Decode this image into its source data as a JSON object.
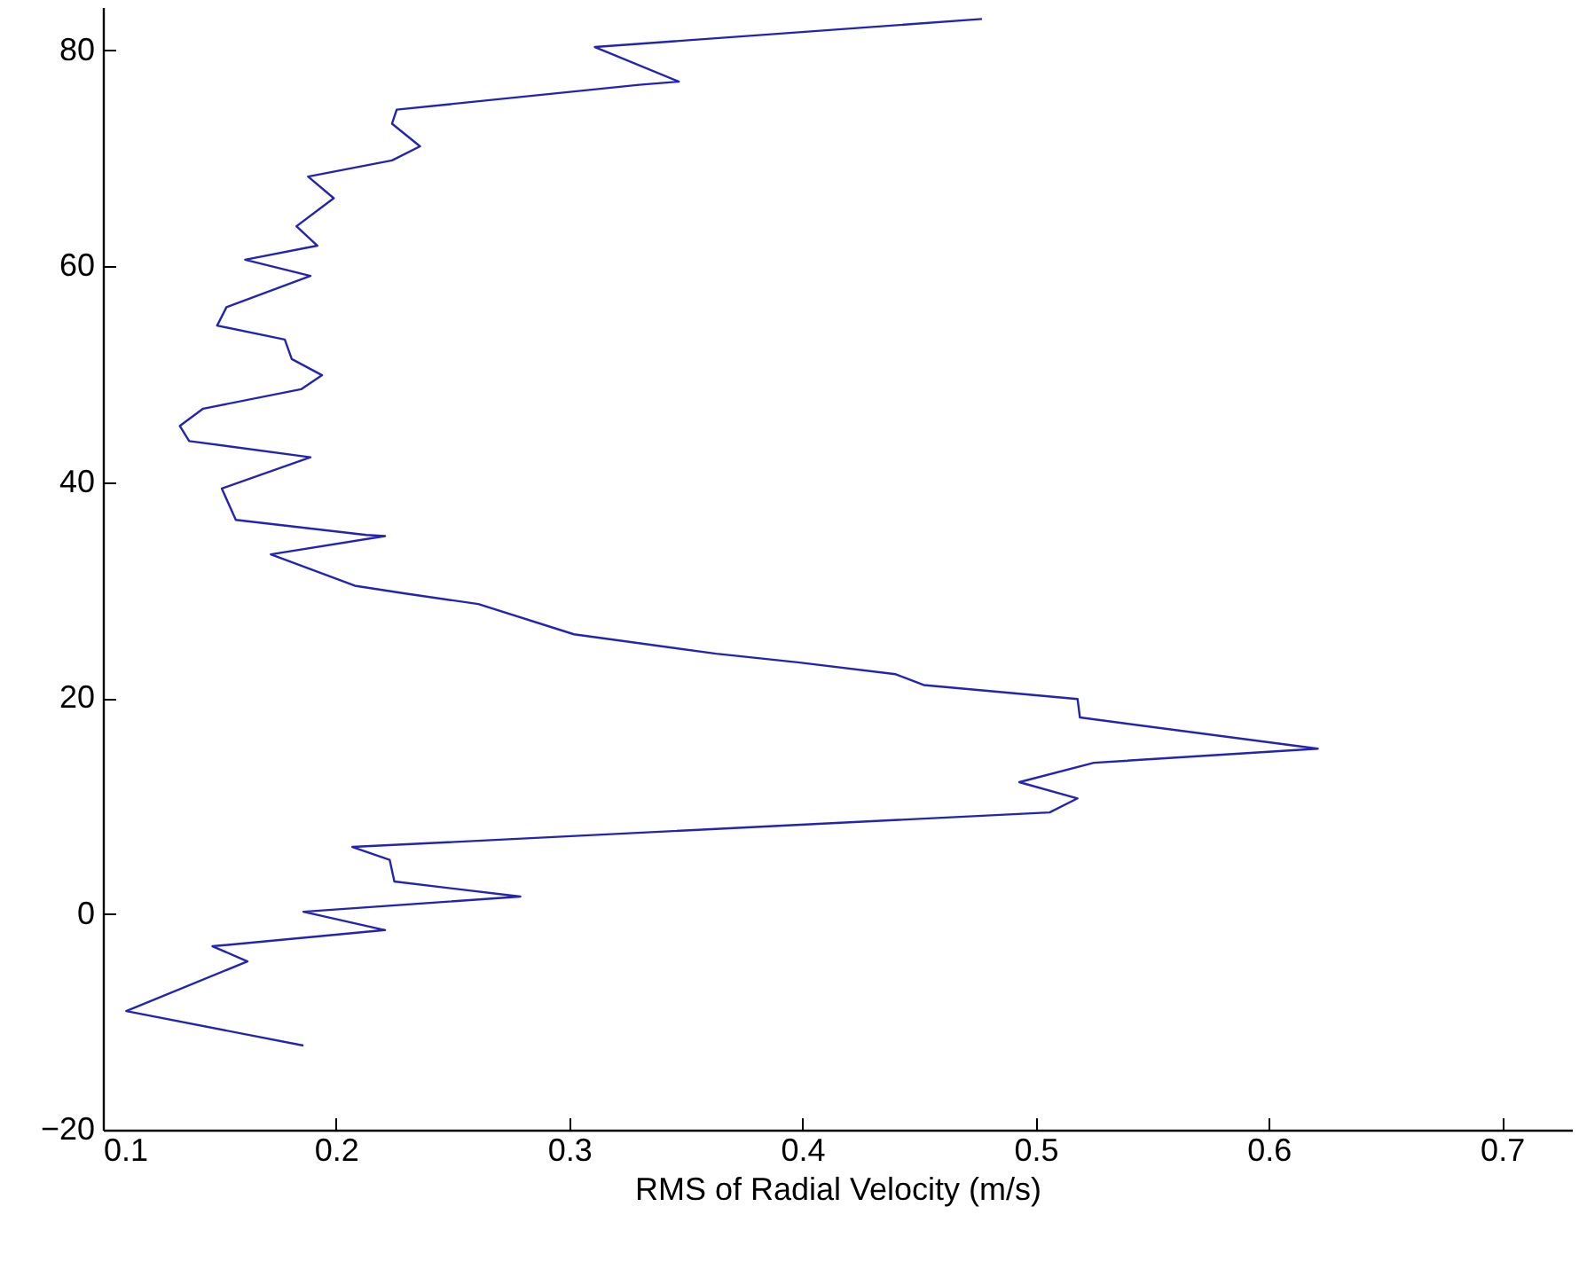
{
  "chart_data": {
    "type": "line",
    "xlabel": "RMS of Radial Velocity (m/s)",
    "x": [
      0.477,
      0.311,
      0.347,
      0.33,
      0.226,
      0.224,
      0.236,
      0.224,
      0.188,
      0.199,
      0.183,
      0.192,
      0.161,
      0.189,
      0.153,
      0.149,
      0.178,
      0.181,
      0.194,
      0.185,
      0.143,
      0.133,
      0.137,
      0.189,
      0.151,
      0.157,
      0.213,
      0.221,
      0.172,
      0.208,
      0.229,
      0.261,
      0.302,
      0.363,
      0.398,
      0.44,
      0.452,
      0.518,
      0.519,
      0.621,
      0.525,
      0.493,
      0.518,
      0.506,
      0.207,
      0.223,
      0.225,
      0.279,
      0.186,
      0.221,
      0.147,
      0.162,
      0.11,
      0.186
    ],
    "series": [
      {
        "color": "#2323b4",
        "values": [
          82.9,
          80.3,
          77.1,
          76.8,
          74.5,
          73.2,
          71.1,
          69.8,
          68.3,
          66.3,
          63.7,
          61.9,
          60.6,
          59.1,
          56.2,
          54.5,
          53.2,
          51.4,
          49.9,
          48.6,
          46.8,
          45.2,
          43.8,
          42.3,
          39.4,
          36.5,
          35.1,
          35.0,
          33.3,
          30.4,
          29.7,
          28.7,
          25.9,
          24.1,
          23.3,
          22.2,
          21.2,
          19.9,
          18.2,
          15.3,
          14.0,
          12.2,
          10.7,
          9.4,
          6.2,
          5.0,
          3.0,
          1.6,
          0.2,
          -1.5,
          -3.0,
          -4.4,
          -9.0,
          -12.2
        ]
      }
    ],
    "xlim": [
      0.1,
      0.73
    ],
    "xticks": [
      0.1,
      0.2,
      0.3,
      0.4,
      0.5,
      0.6,
      0.7
    ],
    "ylim": [
      -20,
      84
    ],
    "yticks": [
      -20,
      0,
      20,
      40,
      60,
      80
    ],
    "marker": "none",
    "line_style": "solid"
  }
}
